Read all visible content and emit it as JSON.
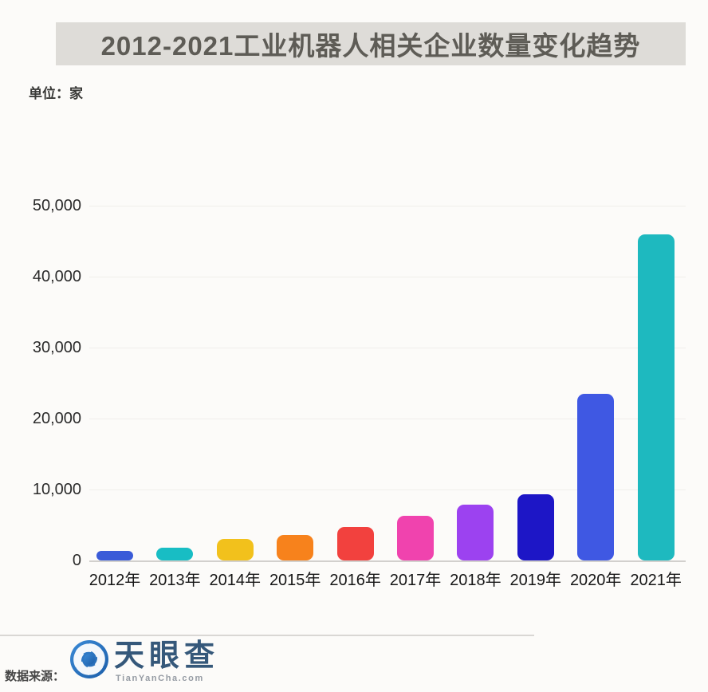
{
  "title": "2012-2021工业机器人相关企业数量变化趋势",
  "unit_label": "单位：家",
  "footer": {
    "source_label": "数据来源：",
    "logo_text": "天眼查",
    "logo_subtext": "TianYanCha.com"
  },
  "chart_data": {
    "type": "bar",
    "title": "2012-2021工业机器人相关企业数量变化趋势",
    "ylabel": "单位：家",
    "categories": [
      "2012年",
      "2013年",
      "2014年",
      "2015年",
      "2016年",
      "2017年",
      "2018年",
      "2019年",
      "2020年",
      "2021年"
    ],
    "values": [
      1300,
      1800,
      3000,
      3600,
      4700,
      6300,
      7900,
      9300,
      23500,
      46000
    ],
    "bar_colors": [
      "#3a5bd8",
      "#18bdc4",
      "#f2c11c",
      "#f7821c",
      "#f2413e",
      "#f043ae",
      "#9c42f0",
      "#1d16c6",
      "#3f58e3",
      "#1eb9bf"
    ],
    "ylim": [
      0,
      50000
    ],
    "yticks": [
      {
        "label": "50,000",
        "value": 50000
      },
      {
        "label": "40,000",
        "value": 40000
      },
      {
        "label": "30,000",
        "value": 30000
      },
      {
        "label": "20,000",
        "value": 20000
      },
      {
        "label": "10,000",
        "value": 10000
      },
      {
        "label": "0",
        "value": 0
      }
    ],
    "grid": true,
    "legend": false,
    "source": "天眼查 TianYanCha.com"
  }
}
